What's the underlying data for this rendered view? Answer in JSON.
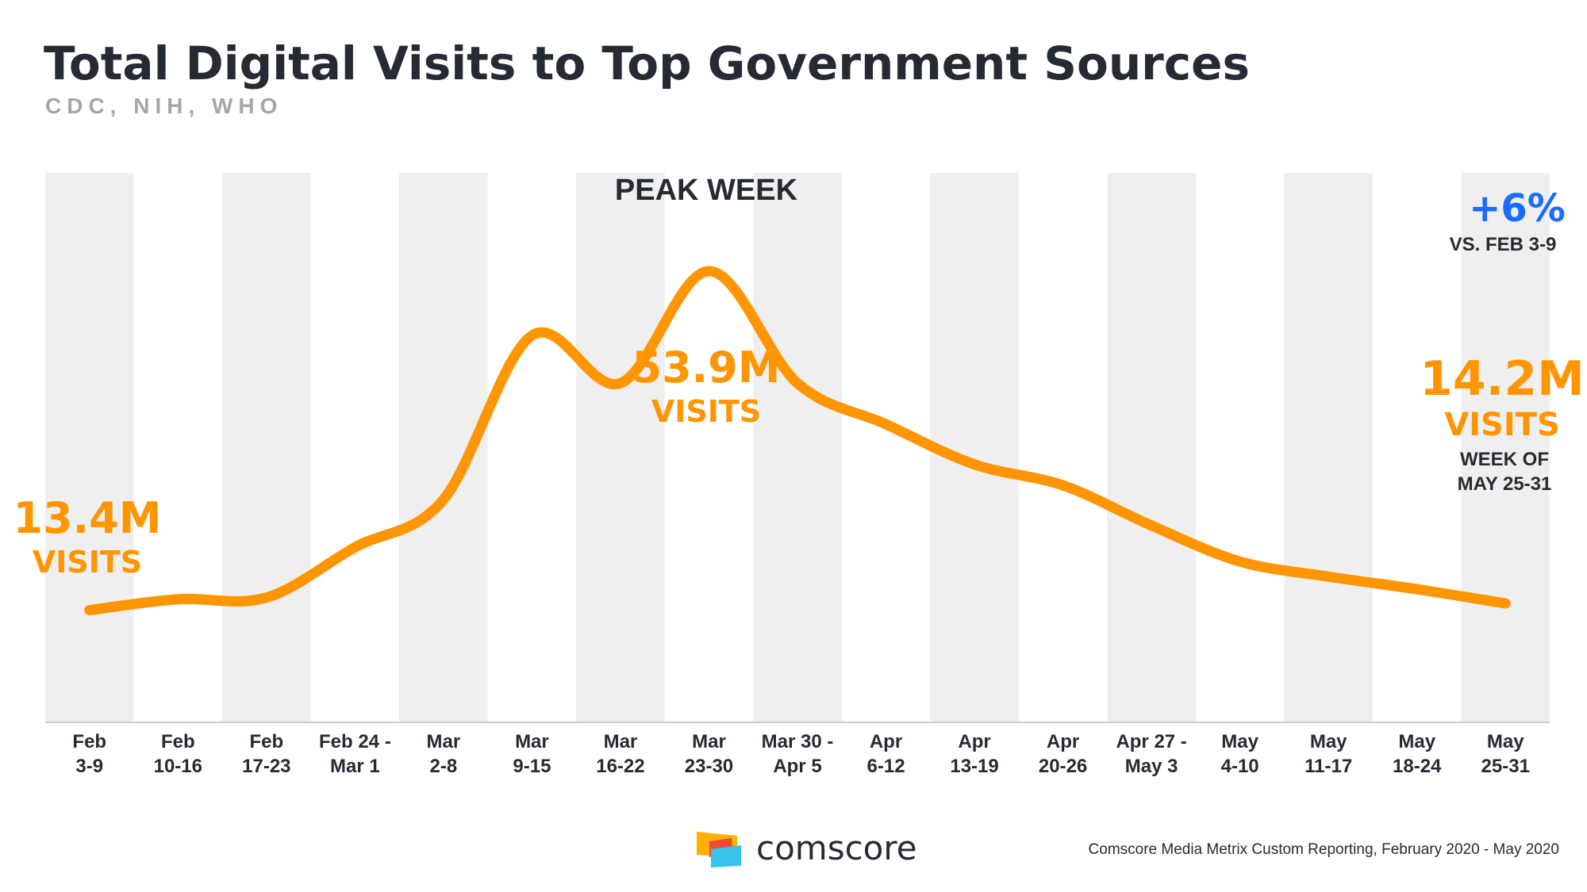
{
  "header": {
    "title": "Total Digital Visits to Top Government Sources",
    "subtitle": "CDC, NIH, WHO"
  },
  "chart_data": {
    "type": "line",
    "title": "Total Digital Visits to Top Government Sources",
    "subtitle": "CDC, NIH, WHO",
    "xlabel": "",
    "ylabel": "",
    "categories": [
      [
        "Feb",
        "3-9"
      ],
      [
        "Feb",
        "10-16"
      ],
      [
        "Feb",
        "17-23"
      ],
      [
        "Feb 24 -",
        "Mar 1"
      ],
      [
        "Mar",
        "2-8"
      ],
      [
        "Mar",
        "9-15"
      ],
      [
        "Mar",
        "16-22"
      ],
      [
        "Mar",
        "23-30"
      ],
      [
        "Mar 30 -",
        "Apr 5"
      ],
      [
        "Apr",
        "6-12"
      ],
      [
        "Apr",
        "13-19"
      ],
      [
        "Apr",
        "20-26"
      ],
      [
        "Apr 27 -",
        "May 3"
      ],
      [
        "May",
        "4-10"
      ],
      [
        "May",
        "11-17"
      ],
      [
        "May",
        "18-24"
      ],
      [
        "May",
        "25-31"
      ]
    ],
    "series": [
      {
        "values": [
          13.4,
          14.7,
          14.9,
          20.9,
          26.6,
          46.2,
          40.5,
          53.9,
          40.5,
          35.6,
          30.8,
          28.3,
          23.5,
          19.2,
          17.4,
          15.9,
          14.2
        ]
      }
    ],
    "ylim": [
      0,
      62
    ],
    "alternating_bands": true,
    "grid": false,
    "line_color": "#ff9500",
    "band_color": "#efefef",
    "annotations": {
      "start": {
        "value": "13.4M",
        "unit": "VISITS"
      },
      "peak": {
        "heading": "PEAK WEEK",
        "value": "53.9M",
        "unit": "VISITS"
      },
      "end": {
        "change": "+6%",
        "change_note": "VS. FEB 3-9",
        "value": "14.2M",
        "unit": "VISITS",
        "note_line1": "WEEK OF",
        "note_line2": "MAY 25-31"
      }
    }
  },
  "footer": {
    "brand": "comscore",
    "source": "Comscore Media Metrix Custom Reporting, February 2020 - May 2020"
  },
  "colors": {
    "accent_orange": "#ff9500",
    "accent_blue": "#1a6bff",
    "text_dark": "#262a33",
    "subtitle_gray": "#a6a6a6",
    "band_gray": "#efefef"
  },
  "icons": {
    "logo": "comscore-logo-icon"
  }
}
